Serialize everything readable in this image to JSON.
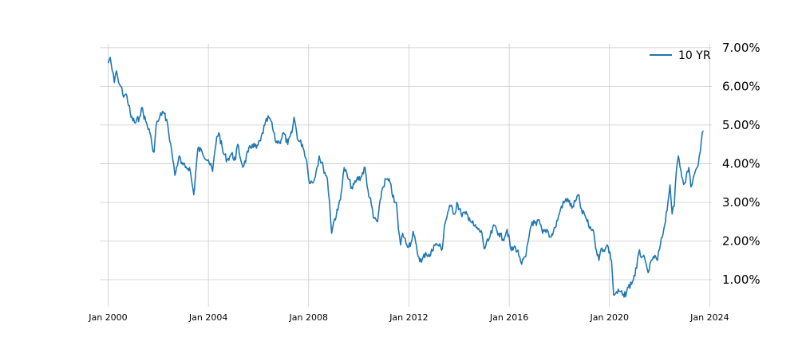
{
  "chart_data": {
    "type": "line",
    "title": "",
    "xlabel": "",
    "ylabel": "",
    "xlim": [
      "1999-09",
      "2024-02"
    ],
    "ylim": [
      0.3,
      7.1
    ],
    "y_axis_side": "right",
    "grid": true,
    "legend_position": "top-right",
    "x_ticks": [
      {
        "date": "2000-01",
        "label": "Jan 2000"
      },
      {
        "date": "2004-01",
        "label": "Jan 2004"
      },
      {
        "date": "2008-01",
        "label": "Jan 2008"
      },
      {
        "date": "2012-01",
        "label": "Jan 2012"
      },
      {
        "date": "2016-01",
        "label": "Jan 2016"
      },
      {
        "date": "2020-01",
        "label": "Jan 2020"
      },
      {
        "date": "2024-01",
        "label": "Jan 2024"
      }
    ],
    "y_ticks": [
      {
        "value": 1,
        "label": "1.00%"
      },
      {
        "value": 2,
        "label": "2.00%"
      },
      {
        "value": 3,
        "label": "3.00%"
      },
      {
        "value": 4,
        "label": "4.00%"
      },
      {
        "value": 5,
        "label": "5.00%"
      },
      {
        "value": 6,
        "label": "6.00%"
      },
      {
        "value": 7,
        "label": "7.00%"
      }
    ],
    "series": [
      {
        "name": "10 YR",
        "color": "#1f77b4",
        "points": [
          [
            "2000-01",
            6.6
          ],
          [
            "2000-02",
            6.75
          ],
          [
            "2000-03",
            6.4
          ],
          [
            "2000-04",
            6.1
          ],
          [
            "2000-05",
            6.4
          ],
          [
            "2000-06",
            6.1
          ],
          [
            "2000-07",
            6.0
          ],
          [
            "2000-08",
            5.8
          ],
          [
            "2000-10",
            5.75
          ],
          [
            "2000-12",
            5.2
          ],
          [
            "2001-02",
            5.05
          ],
          [
            "2001-04",
            5.2
          ],
          [
            "2001-05",
            5.45
          ],
          [
            "2001-07",
            5.1
          ],
          [
            "2001-09",
            4.8
          ],
          [
            "2001-10",
            4.5
          ],
          [
            "2001-11",
            4.3
          ],
          [
            "2001-12",
            5.0
          ],
          [
            "2002-01",
            5.1
          ],
          [
            "2002-03",
            5.35
          ],
          [
            "2002-05",
            5.15
          ],
          [
            "2002-06",
            4.8
          ],
          [
            "2002-07",
            4.5
          ],
          [
            "2002-08",
            4.1
          ],
          [
            "2002-09",
            3.7
          ],
          [
            "2002-11",
            4.2
          ],
          [
            "2002-12",
            4.0
          ],
          [
            "2003-02",
            3.9
          ],
          [
            "2003-04",
            3.9
          ],
          [
            "2003-06",
            3.2
          ],
          [
            "2003-08",
            4.4
          ],
          [
            "2003-10",
            4.3
          ],
          [
            "2004-01",
            4.1
          ],
          [
            "2004-03",
            3.8
          ],
          [
            "2004-05",
            4.7
          ],
          [
            "2004-06",
            4.8
          ],
          [
            "2004-08",
            4.3
          ],
          [
            "2004-10",
            4.1
          ],
          [
            "2004-12",
            4.25
          ],
          [
            "2005-02",
            4.1
          ],
          [
            "2005-03",
            4.5
          ],
          [
            "2005-05",
            4.0
          ],
          [
            "2005-06",
            3.95
          ],
          [
            "2005-08",
            4.3
          ],
          [
            "2005-10",
            4.5
          ],
          [
            "2005-12",
            4.4
          ],
          [
            "2006-02",
            4.6
          ],
          [
            "2006-04",
            5.0
          ],
          [
            "2006-06",
            5.2
          ],
          [
            "2006-07",
            5.1
          ],
          [
            "2006-09",
            4.6
          ],
          [
            "2006-11",
            4.55
          ],
          [
            "2007-01",
            4.8
          ],
          [
            "2007-03",
            4.5
          ],
          [
            "2007-05",
            4.8
          ],
          [
            "2007-06",
            5.2
          ],
          [
            "2007-08",
            4.6
          ],
          [
            "2007-10",
            4.5
          ],
          [
            "2007-12",
            4.1
          ],
          [
            "2008-01",
            3.6
          ],
          [
            "2008-03",
            3.5
          ],
          [
            "2008-05",
            3.9
          ],
          [
            "2008-06",
            4.2
          ],
          [
            "2008-08",
            3.9
          ],
          [
            "2008-10",
            3.6
          ],
          [
            "2008-11",
            3.0
          ],
          [
            "2008-12",
            2.2
          ],
          [
            "2009-01",
            2.5
          ],
          [
            "2009-03",
            2.8
          ],
          [
            "2009-05",
            3.4
          ],
          [
            "2009-06",
            3.9
          ],
          [
            "2009-08",
            3.6
          ],
          [
            "2009-10",
            3.35
          ],
          [
            "2009-12",
            3.6
          ],
          [
            "2010-02",
            3.65
          ],
          [
            "2010-04",
            3.9
          ],
          [
            "2010-05",
            3.4
          ],
          [
            "2010-07",
            2.95
          ],
          [
            "2010-08",
            2.6
          ],
          [
            "2010-10",
            2.5
          ],
          [
            "2010-12",
            3.3
          ],
          [
            "2011-02",
            3.6
          ],
          [
            "2011-04",
            3.5
          ],
          [
            "2011-06",
            3.0
          ],
          [
            "2011-07",
            3.0
          ],
          [
            "2011-08",
            2.3
          ],
          [
            "2011-09",
            1.9
          ],
          [
            "2011-10",
            2.2
          ],
          [
            "2011-12",
            1.9
          ],
          [
            "2012-02",
            1.95
          ],
          [
            "2012-03",
            2.25
          ],
          [
            "2012-05",
            1.7
          ],
          [
            "2012-07",
            1.45
          ],
          [
            "2012-09",
            1.7
          ],
          [
            "2012-11",
            1.6
          ],
          [
            "2013-01",
            1.9
          ],
          [
            "2013-03",
            1.9
          ],
          [
            "2013-05",
            1.8
          ],
          [
            "2013-06",
            2.4
          ],
          [
            "2013-08",
            2.8
          ],
          [
            "2013-09",
            2.9
          ],
          [
            "2013-11",
            2.7
          ],
          [
            "2013-12",
            3.0
          ],
          [
            "2014-02",
            2.7
          ],
          [
            "2014-04",
            2.7
          ],
          [
            "2014-06",
            2.6
          ],
          [
            "2014-08",
            2.4
          ],
          [
            "2014-10",
            2.3
          ],
          [
            "2014-12",
            2.2
          ],
          [
            "2015-01",
            1.8
          ],
          [
            "2015-03",
            2.0
          ],
          [
            "2015-06",
            2.4
          ],
          [
            "2015-08",
            2.2
          ],
          [
            "2015-10",
            2.05
          ],
          [
            "2015-12",
            2.3
          ],
          [
            "2016-02",
            1.75
          ],
          [
            "2016-04",
            1.85
          ],
          [
            "2016-06",
            1.6
          ],
          [
            "2016-07",
            1.4
          ],
          [
            "2016-09",
            1.6
          ],
          [
            "2016-11",
            2.3
          ],
          [
            "2016-12",
            2.5
          ],
          [
            "2017-02",
            2.4
          ],
          [
            "2017-03",
            2.55
          ],
          [
            "2017-05",
            2.2
          ],
          [
            "2017-07",
            2.3
          ],
          [
            "2017-09",
            2.1
          ],
          [
            "2017-11",
            2.35
          ],
          [
            "2018-01",
            2.7
          ],
          [
            "2018-02",
            2.9
          ],
          [
            "2018-05",
            3.1
          ],
          [
            "2018-07",
            2.85
          ],
          [
            "2018-09",
            3.05
          ],
          [
            "2018-10",
            3.2
          ],
          [
            "2018-12",
            2.7
          ],
          [
            "2019-01",
            2.7
          ],
          [
            "2019-03",
            2.4
          ],
          [
            "2019-05",
            2.3
          ],
          [
            "2019-06",
            2.0
          ],
          [
            "2019-08",
            1.5
          ],
          [
            "2019-09",
            1.8
          ],
          [
            "2019-11",
            1.8
          ],
          [
            "2019-12",
            1.9
          ],
          [
            "2020-02",
            1.5
          ],
          [
            "2020-03",
            0.6
          ],
          [
            "2020-04",
            0.65
          ],
          [
            "2020-06",
            0.7
          ],
          [
            "2020-08",
            0.55
          ],
          [
            "2020-10",
            0.8
          ],
          [
            "2020-12",
            0.95
          ],
          [
            "2021-02",
            1.3
          ],
          [
            "2021-03",
            1.7
          ],
          [
            "2021-05",
            1.6
          ],
          [
            "2021-07",
            1.3
          ],
          [
            "2021-08",
            1.25
          ],
          [
            "2021-10",
            1.6
          ],
          [
            "2021-12",
            1.5
          ],
          [
            "2022-01",
            1.8
          ],
          [
            "2022-03",
            2.3
          ],
          [
            "2022-05",
            3.0
          ],
          [
            "2022-06",
            3.45
          ],
          [
            "2022-07",
            2.7
          ],
          [
            "2022-08",
            2.9
          ],
          [
            "2022-09",
            3.8
          ],
          [
            "2022-10",
            4.2
          ],
          [
            "2022-12",
            3.6
          ],
          [
            "2023-01",
            3.5
          ],
          [
            "2023-03",
            3.9
          ],
          [
            "2023-04",
            3.4
          ],
          [
            "2023-05",
            3.6
          ],
          [
            "2023-07",
            3.9
          ],
          [
            "2023-08",
            4.2
          ],
          [
            "2023-09",
            4.6
          ],
          [
            "2023-10",
            4.85
          ]
        ]
      }
    ]
  }
}
